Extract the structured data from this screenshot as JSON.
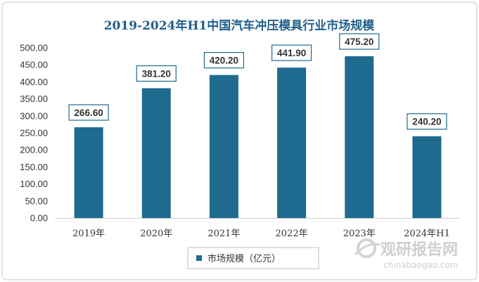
{
  "chart_data": {
    "type": "bar",
    "title": "2019-2024年H1中国汽车冲压模具行业市场规模",
    "categories": [
      "2019年",
      "2020年",
      "2021年",
      "2022年",
      "2023年",
      "2024年H1"
    ],
    "series": [
      {
        "name": "市场规模（亿元）",
        "values": [
          266.6,
          381.2,
          420.2,
          441.9,
          475.2,
          240.2
        ]
      }
    ],
    "data_labels": [
      "266.60",
      "381.20",
      "420.20",
      "441.90",
      "475.20",
      "240.20"
    ],
    "yticks": [
      "0.00",
      "50.00",
      "100.00",
      "150.00",
      "200.00",
      "250.00",
      "300.00",
      "350.00",
      "400.00",
      "450.00",
      "500.00"
    ],
    "ylim": [
      0,
      500
    ],
    "grid": false,
    "legend_position": "bottom",
    "bar_color": "#1f6a8f"
  },
  "watermark": {
    "brand_cn": "观研报告网",
    "brand_url": "chinabaogao.com"
  }
}
